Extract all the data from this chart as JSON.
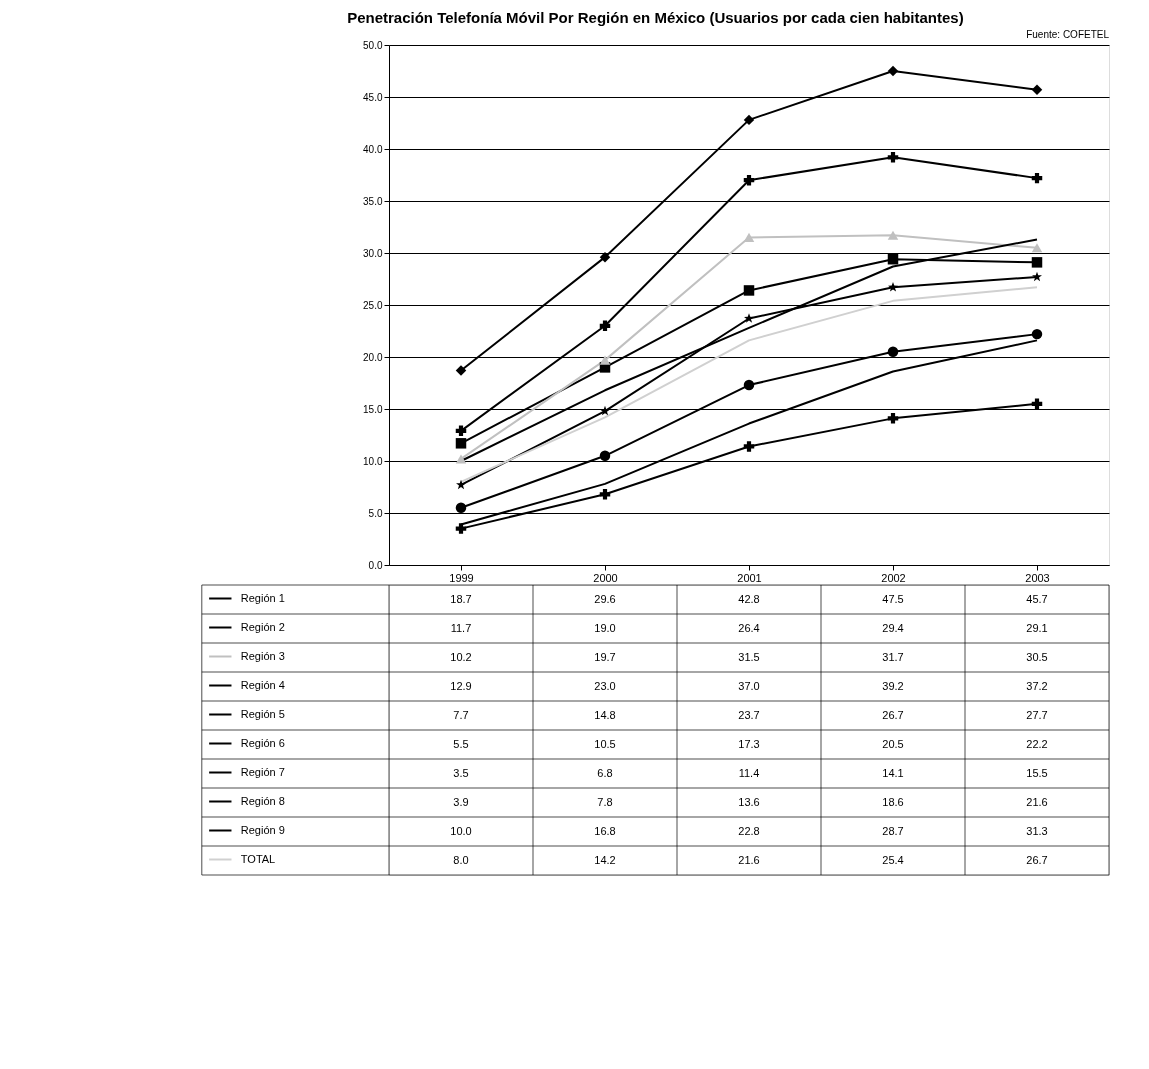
{
  "chart_data": {
    "type": "line",
    "title": "Penetración Telefonía Móvil Por Región en México (Usuarios por cada cien habitantes)",
    "annotations": [
      "Fuente: COFETEL"
    ],
    "categories": [
      "1999",
      "2000",
      "2001",
      "2002",
      "2003"
    ],
    "ylim": [
      0,
      50
    ],
    "yticks": [
      {
        "value": 0,
        "label": "0.0"
      },
      {
        "value": 5,
        "label": "5.0"
      },
      {
        "value": 10,
        "label": "10.0"
      },
      {
        "value": 15,
        "label": "15.0"
      },
      {
        "value": 20,
        "label": "20.0"
      },
      {
        "value": 25,
        "label": "25.0"
      },
      {
        "value": 30,
        "label": "30.0"
      },
      {
        "value": 35,
        "label": "35.0"
      },
      {
        "value": 40,
        "label": "40.0"
      },
      {
        "value": 45,
        "label": "45.0"
      },
      {
        "value": 50,
        "label": "50.0"
      }
    ],
    "grid": "y",
    "legend": "bottom",
    "series": [
      {
        "name": "Región 1",
        "color": "#000000",
        "marker": "diamond",
        "values": [
          18.7,
          29.6,
          42.8,
          47.5,
          45.7
        ],
        "value_labels": [
          "18.7",
          "29.6",
          "42.8",
          "47.5",
          "45.7"
        ]
      },
      {
        "name": "Región 2",
        "color": "#000000",
        "marker": "square",
        "values": [
          11.7,
          19,
          26.4,
          29.4,
          29.1
        ],
        "value_labels": [
          "11.7",
          "19.0",
          "26.4",
          "29.4",
          "29.1"
        ]
      },
      {
        "name": "Región 3",
        "color": "#c0c0c0",
        "marker": "triangle",
        "values": [
          10.2,
          19.7,
          31.5,
          31.7,
          30.5
        ],
        "value_labels": [
          "10.2",
          "19.7",
          "31.5",
          "31.7",
          "30.5"
        ]
      },
      {
        "name": "Región 4",
        "color": "#000000",
        "marker": "cross",
        "values": [
          12.9,
          23,
          37,
          39.2,
          37.2
        ],
        "value_labels": [
          "12.9",
          "23.0",
          "37.0",
          "39.2",
          "37.2"
        ]
      },
      {
        "name": "Región 5",
        "color": "#000000",
        "marker": "star",
        "values": [
          7.7,
          14.8,
          23.7,
          26.7,
          27.7
        ],
        "value_labels": [
          "7.7",
          "14.8",
          "23.7",
          "26.7",
          "27.7"
        ]
      },
      {
        "name": "Región 6",
        "color": "#000000",
        "marker": "circle",
        "values": [
          5.5,
          10.5,
          17.3,
          20.5,
          22.2
        ],
        "value_labels": [
          "5.5",
          "10.5",
          "17.3",
          "20.5",
          "22.2"
        ]
      },
      {
        "name": "Región 7",
        "color": "#000000",
        "marker": "cross",
        "values": [
          3.5,
          6.8,
          11.4,
          14.1,
          15.5
        ],
        "value_labels": [
          "3.5",
          "6.8",
          "11.4",
          "14.1",
          "15.5"
        ]
      },
      {
        "name": "Región 8",
        "color": "#000000",
        "marker": "none",
        "values": [
          3.9,
          7.8,
          13.6,
          18.6,
          21.6
        ],
        "value_labels": [
          "3.9",
          "7.8",
          "13.6",
          "18.6",
          "21.6"
        ]
      },
      {
        "name": "Región 9",
        "color": "#000000",
        "marker": "none",
        "values": [
          10,
          16.8,
          22.8,
          28.7,
          31.3
        ],
        "value_labels": [
          "10.0",
          "16.8",
          "22.8",
          "28.7",
          "31.3"
        ]
      },
      {
        "name": "TOTAL",
        "color": "#d0d0d0",
        "marker": "none",
        "values": [
          8,
          14.2,
          21.6,
          25.4,
          26.7
        ],
        "value_labels": [
          "8.0",
          "14.2",
          "21.6",
          "25.4",
          "26.7"
        ]
      }
    ]
  }
}
